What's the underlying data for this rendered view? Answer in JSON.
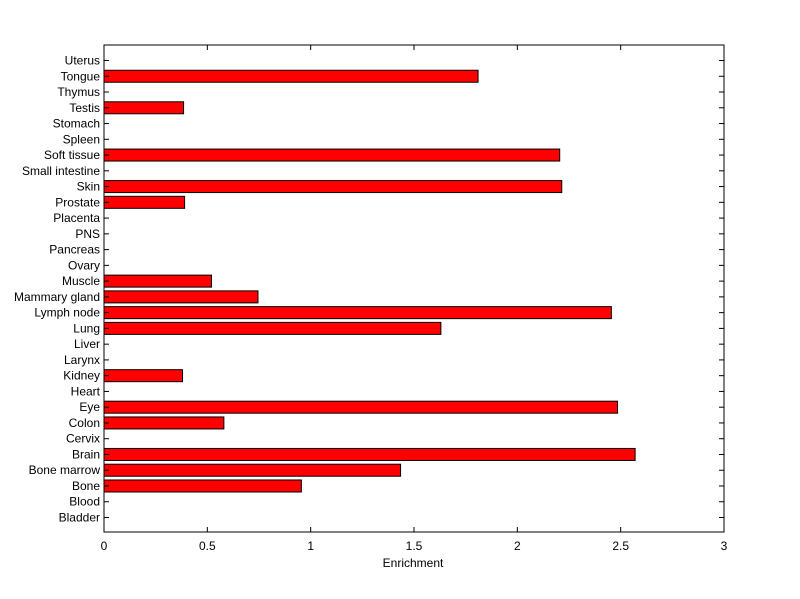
{
  "chart_data": {
    "type": "bar",
    "orientation": "horizontal",
    "title": "",
    "xlabel": "Enrichment",
    "ylabel": "",
    "xlim": [
      0,
      3
    ],
    "xticks": [
      0,
      0.5,
      1,
      1.5,
      2,
      2.5,
      3
    ],
    "xtick_labels": [
      "0",
      "0.5",
      "1",
      "1.5",
      "2",
      "2.5",
      "3"
    ],
    "grid": false,
    "bar_color": "#ff0000",
    "categories": [
      "Bladder",
      "Blood",
      "Bone",
      "Bone marrow",
      "Brain",
      "Cervix",
      "Colon",
      "Eye",
      "Heart",
      "Kidney",
      "Larynx",
      "Liver",
      "Lung",
      "Lymph node",
      "Mammary gland",
      "Muscle",
      "Ovary",
      "Pancreas",
      "PNS",
      "Placenta",
      "Prostate",
      "Skin",
      "Small intestine",
      "Soft tissue",
      "Spleen",
      "Stomach",
      "Testis",
      "Thymus",
      "Tongue",
      "Uterus"
    ],
    "values": [
      0,
      0,
      0.955,
      1.435,
      2.57,
      0,
      0.58,
      2.485,
      0,
      0.38,
      0,
      0,
      1.63,
      2.455,
      0.745,
      0.52,
      0,
      0,
      0,
      0,
      0.39,
      2.215,
      0,
      2.205,
      0,
      0,
      0.385,
      0,
      1.81,
      0
    ]
  }
}
